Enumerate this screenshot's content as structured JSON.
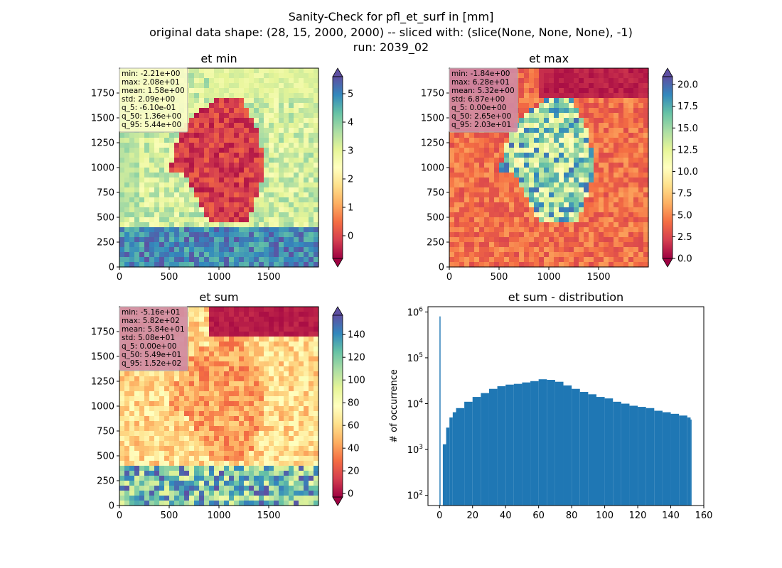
{
  "figure": {
    "suptitle_lines": [
      "Sanity-Check for pfl_et_surf in [mm]",
      "original data shape: (28, 15, 2000, 2000) -- sliced with: (slice(None, None, None), -1)",
      "run: 2039_02"
    ]
  },
  "chart_data": [
    {
      "type": "heatmap",
      "title": "et min",
      "colormap": "Spectral",
      "xlim": [
        0,
        2000
      ],
      "ylim": [
        0,
        2000
      ],
      "xticks": [
        0,
        500,
        1000,
        1500
      ],
      "yticks": [
        0,
        250,
        500,
        750,
        1000,
        1250,
        1500,
        1750
      ],
      "colorbar": {
        "ticks": [
          0,
          1,
          2,
          3,
          4,
          5
        ],
        "range": [
          -0.8,
          5.6
        ],
        "extend": "both"
      },
      "stats_box_color": "#fafcc8",
      "stats": [
        "min: -2.21e+00",
        "max: 2.08e+01",
        "mean: 1.58e+00",
        "std: 2.09e+00",
        "q_5: -6.10e-01",
        "q_50: 1.36e+00",
        "q_95: 5.44e+00"
      ]
    },
    {
      "type": "heatmap",
      "title": "et max",
      "colormap": "Spectral",
      "xlim": [
        0,
        2000
      ],
      "ylim": [
        0,
        2000
      ],
      "xticks": [
        0,
        500,
        1000,
        1500
      ],
      "yticks": [
        0,
        250,
        500,
        750,
        1000,
        1250,
        1500,
        1750
      ],
      "colorbar": {
        "ticks": [
          0.0,
          2.5,
          5.0,
          7.5,
          10.0,
          12.5,
          15.0,
          17.5,
          20.0
        ],
        "tick_labels": [
          "0.0",
          "2.5",
          "5.0",
          "7.5",
          "10.0",
          "12.5",
          "15.0",
          "17.5",
          "20.0"
        ],
        "range": [
          0,
          20.9
        ],
        "extend": "both"
      },
      "stats_box_color": "#d08aa2",
      "stats": [
        "min: -1.84e+00",
        "max: 6.28e+01",
        "mean: 5.32e+00",
        "std: 6.87e+00",
        "q_5: 0.00e+00",
        "q_50: 2.65e+00",
        "q_95: 2.03e+01"
      ]
    },
    {
      "type": "heatmap",
      "title": "et sum",
      "colormap": "Spectral",
      "xlim": [
        0,
        2000
      ],
      "ylim": [
        0,
        2000
      ],
      "xticks": [
        0,
        500,
        1000,
        1500
      ],
      "yticks": [
        0,
        250,
        500,
        750,
        1000,
        1250,
        1500,
        1750
      ],
      "colorbar": {
        "ticks": [
          0,
          20,
          40,
          60,
          80,
          100,
          120,
          140
        ],
        "range": [
          -3,
          157
        ],
        "extend": "both"
      },
      "stats_box_color": "#d08aa2",
      "stats": [
        "min: -5.16e+01",
        "max: 5.82e+02",
        "mean: 5.84e+01",
        "std: 5.08e+01",
        "q_5: 0.00e+00",
        "q_50: 5.49e+01",
        "q_95: 1.52e+02"
      ]
    },
    {
      "type": "bar",
      "title": "et sum - distribution",
      "ylabel": "# of occurrence",
      "xlabel": "",
      "yscale": "log",
      "xlim": [
        -7,
        160
      ],
      "ylim": [
        60,
        1300000
      ],
      "xticks": [
        0,
        20,
        40,
        60,
        80,
        100,
        120,
        140,
        160
      ],
      "yticks": [
        100,
        1000,
        10000,
        100000,
        1000000
      ],
      "ytick_labels": [
        [
          "10",
          "2"
        ],
        [
          "10",
          "3"
        ],
        [
          "10",
          "4"
        ],
        [
          "10",
          "5"
        ],
        [
          "10",
          "6"
        ]
      ],
      "bar_color": "#1f77b4",
      "bins": [
        [
          0,
          800000
        ],
        [
          2,
          1300
        ],
        [
          4,
          3000
        ],
        [
          6,
          5000
        ],
        [
          8,
          6500
        ],
        [
          10,
          8000
        ],
        [
          15,
          11000
        ],
        [
          20,
          14000
        ],
        [
          25,
          17000
        ],
        [
          30,
          21000
        ],
        [
          35,
          24000
        ],
        [
          40,
          26000
        ],
        [
          45,
          27000
        ],
        [
          50,
          29000
        ],
        [
          55,
          31000
        ],
        [
          60,
          34000
        ],
        [
          65,
          33000
        ],
        [
          70,
          30000
        ],
        [
          75,
          25000
        ],
        [
          80,
          21000
        ],
        [
          85,
          18000
        ],
        [
          90,
          16000
        ],
        [
          95,
          14000
        ],
        [
          100,
          13000
        ],
        [
          105,
          11000
        ],
        [
          110,
          10000
        ],
        [
          115,
          9000
        ],
        [
          120,
          8500
        ],
        [
          125,
          8000
        ],
        [
          130,
          7000
        ],
        [
          135,
          6500
        ],
        [
          140,
          6000
        ],
        [
          145,
          5500
        ],
        [
          150,
          5000
        ],
        [
          152,
          4500
        ]
      ]
    }
  ]
}
